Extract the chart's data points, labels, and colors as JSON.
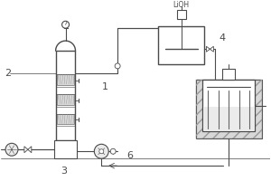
{
  "line_color": "#4a4a4a",
  "line_color2": "#666666",
  "fill_gray": "#d8d8d8",
  "fill_light": "#ebebeb",
  "fill_hatch": "#b0b0b0",
  "bg": "#f5f5f5",
  "label_1": "1",
  "label_2": "2",
  "label_3": "3",
  "label_4": "4",
  "label_6": "6",
  "label_lioh": "LiOH"
}
